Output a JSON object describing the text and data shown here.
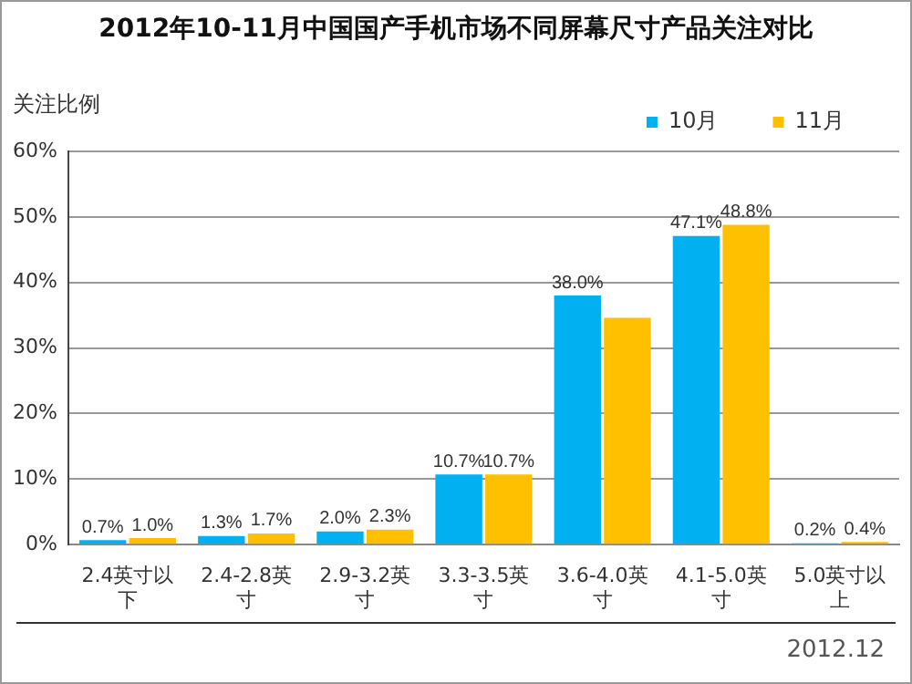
{
  "chart_data": {
    "type": "bar",
    "title": "2012年10-11月中国国产手机市场不同屏幕尺寸产品关注对比",
    "ylabel": "关注比例",
    "categories": [
      "2.4英寸以下",
      "2.4-2.8英寸",
      "2.9-3.2英寸",
      "3.3-3.5英寸",
      "3.6-4.0英寸",
      "4.1-5.0英寸",
      "5.0英寸以上"
    ],
    "series": [
      {
        "name": "10月",
        "color": "#00b0f0",
        "values": [
          0.7,
          1.3,
          2.0,
          10.7,
          38.0,
          47.1,
          0.2
        ],
        "value_labels": [
          "0.7%",
          "1.3%",
          "2.0%",
          "10.7%",
          "38.0%",
          "47.1%",
          "0.2%"
        ]
      },
      {
        "name": "11月",
        "color": "#ffc000",
        "values": [
          1.0,
          1.7,
          2.3,
          10.7,
          34.6,
          48.8,
          0.4
        ],
        "value_labels": [
          "1.0%",
          "1.7%",
          "2.3%",
          "10.7%",
          null,
          "48.8%",
          "0.4%"
        ]
      }
    ],
    "ylim": [
      0,
      60
    ],
    "yticks": [
      {
        "value": 0,
        "label": "0%"
      },
      {
        "value": 10,
        "label": "10%"
      },
      {
        "value": 20,
        "label": "20%"
      },
      {
        "value": 30,
        "label": "30%"
      },
      {
        "value": 40,
        "label": "40%"
      },
      {
        "value": 50,
        "label": "50%"
      },
      {
        "value": 60,
        "label": "60%"
      }
    ],
    "grid": "y",
    "legend": "top right",
    "annotations": [
      "2012.12"
    ]
  }
}
